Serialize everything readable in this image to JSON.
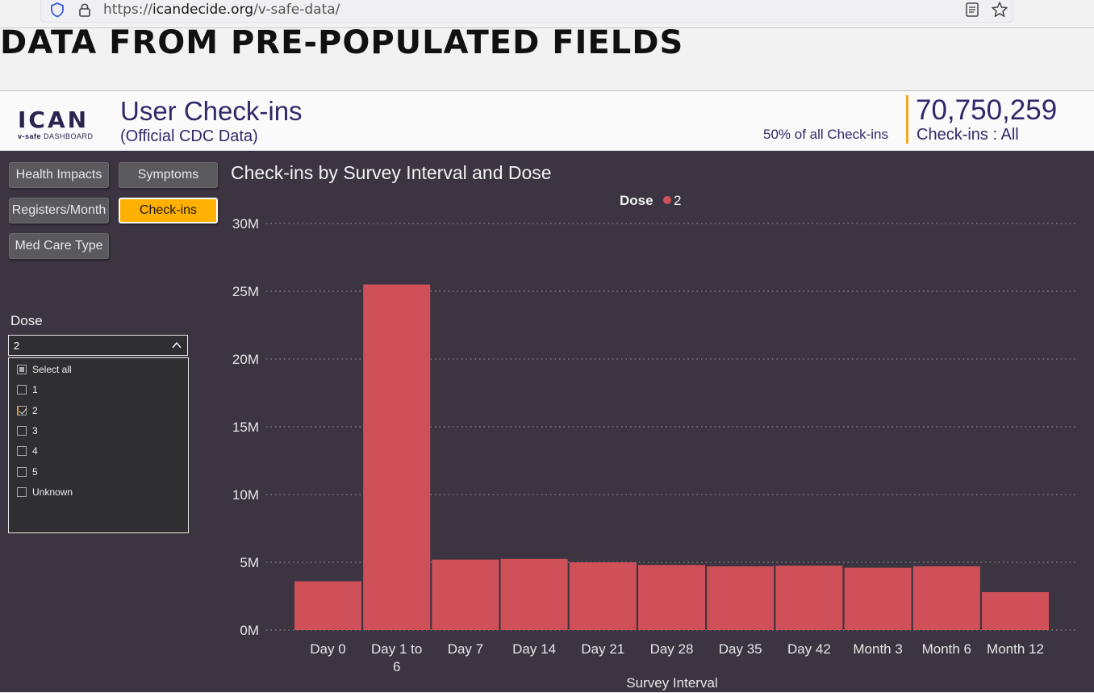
{
  "browser": {
    "url_prefix": "https://",
    "url_host": "icandecide.org",
    "url_path": "/v-safe-data/"
  },
  "headline": "DATA FROM PRE-POPULATED FIELDS",
  "header": {
    "logo_text": "ICAN",
    "logo_sub_bold": "v-safe",
    "logo_sub": " DASHBOARD",
    "title": "User Check-ins",
    "subtitle": "(Official CDC Data)",
    "percent_note": "50% of all Check-ins",
    "kpi_value": "70,750,259",
    "kpi_label": "Check-ins : All"
  },
  "nav": {
    "health_impacts": "Health Impacts",
    "symptoms": "Symptoms",
    "registers_month": "Registers/Month",
    "check_ins": "Check-ins",
    "med_care_type": "Med Care Type"
  },
  "dose_filter": {
    "label": "Dose",
    "selected": "2",
    "options": [
      {
        "label": "Select all",
        "state": "partial"
      },
      {
        "label": "1",
        "state": "unchecked"
      },
      {
        "label": "2",
        "state": "checked"
      },
      {
        "label": "3",
        "state": "unchecked"
      },
      {
        "label": "4",
        "state": "unchecked"
      },
      {
        "label": "5",
        "state": "unchecked"
      },
      {
        "label": "Unknown",
        "state": "unchecked"
      }
    ]
  },
  "chart_title": "Check-ins by Survey Interval and Dose",
  "colors": {
    "bar": "#d0505a",
    "active_button": "#ffb000",
    "background": "#3c3541"
  },
  "chart_data": {
    "type": "bar",
    "title": "Check-ins by Survey Interval and Dose",
    "legend_title": "Dose",
    "legend_position": "top-center",
    "series": [
      {
        "name": "2",
        "values": [
          3600000,
          25500000,
          5200000,
          5250000,
          5000000,
          4800000,
          4700000,
          4750000,
          4600000,
          4700000,
          2800000
        ]
      }
    ],
    "categories": [
      "Day 0",
      "Day 1 to 6",
      "Day 7",
      "Day 14",
      "Day 21",
      "Day 28",
      "Day 35",
      "Day 42",
      "Month 3",
      "Month 6",
      "Month 12"
    ],
    "xlabel": "Survey Interval",
    "ylabel": "",
    "ylim": [
      0,
      30000000
    ],
    "yticks": [
      {
        "value": 0,
        "label": "0M"
      },
      {
        "value": 5000000,
        "label": "5M"
      },
      {
        "value": 10000000,
        "label": "10M"
      },
      {
        "value": 15000000,
        "label": "15M"
      },
      {
        "value": 20000000,
        "label": "20M"
      },
      {
        "value": 25000000,
        "label": "25M"
      },
      {
        "value": 30000000,
        "label": "30M"
      }
    ],
    "grid": true
  }
}
